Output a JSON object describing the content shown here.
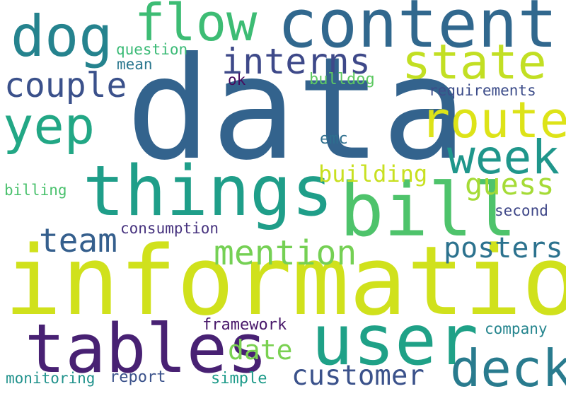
{
  "words": [
    {
      "id": "data",
      "text": "data",
      "color": "#33638d",
      "rotated": false
    },
    {
      "id": "information",
      "text": "information",
      "color": "#d0e11c",
      "rotated": false
    },
    {
      "id": "content",
      "text": "content",
      "color": "#31688e",
      "rotated": false
    },
    {
      "id": "things",
      "text": "things",
      "color": "#1f9e89",
      "rotated": false
    },
    {
      "id": "user",
      "text": "user",
      "color": "#1fa187",
      "rotated": false
    },
    {
      "id": "tables",
      "text": "tables",
      "color": "#482173",
      "rotated": false
    },
    {
      "id": "bill",
      "text": "bill",
      "color": "#4ec36b",
      "rotated": false
    },
    {
      "id": "dog",
      "text": "dog",
      "color": "#25838e",
      "rotated": false
    },
    {
      "id": "flow",
      "text": "flow",
      "color": "#3dbc74",
      "rotated": false
    },
    {
      "id": "deck",
      "text": "deck",
      "color": "#297b8e",
      "rotated": false
    },
    {
      "id": "route",
      "text": "route",
      "color": "#dde318",
      "rotated": false
    },
    {
      "id": "state",
      "text": "state",
      "color": "#c2df23",
      "rotated": false
    },
    {
      "id": "week",
      "text": "week",
      "color": "#1f968b",
      "rotated": false
    },
    {
      "id": "yep",
      "text": "yep",
      "color": "#22a785",
      "rotated": false
    },
    {
      "id": "couple",
      "text": "couple",
      "color": "#3b518b",
      "rotated": false
    },
    {
      "id": "interns",
      "text": "interns",
      "color": "#3e4989",
      "rotated": false
    },
    {
      "id": "mention",
      "text": "mention",
      "color": "#75d054",
      "rotated": false
    },
    {
      "id": "team",
      "text": "team",
      "color": "#355f8d",
      "rotated": false
    },
    {
      "id": "posters",
      "text": "posters",
      "color": "#2c728e",
      "rotated": false
    },
    {
      "id": "customer",
      "text": "customer",
      "color": "#3b528b",
      "rotated": false
    },
    {
      "id": "guess",
      "text": "guess",
      "color": "#a5db36",
      "rotated": false
    },
    {
      "id": "date",
      "text": "date",
      "color": "#7ad151",
      "rotated": false
    },
    {
      "id": "building",
      "text": "building",
      "color": "#c8e020",
      "rotated": false
    },
    {
      "id": "question",
      "text": "question",
      "color": "#3aba76",
      "rotated": false
    },
    {
      "id": "mean",
      "text": "mean",
      "color": "#2a778e",
      "rotated": false
    },
    {
      "id": "ok",
      "text": "ok",
      "color": "#460b5e",
      "rotated": false
    },
    {
      "id": "bulldog",
      "text": "bulldog",
      "color": "#5ec962",
      "rotated": false
    },
    {
      "id": "requirements",
      "text": "requirements",
      "color": "#3d4d8a",
      "rotated": false
    },
    {
      "id": "emc",
      "text": "emc",
      "color": "#2e6f8e",
      "rotated": false
    },
    {
      "id": "billing",
      "text": "billing",
      "color": "#4ac16d",
      "rotated": false
    },
    {
      "id": "consumption",
      "text": "consumption",
      "color": "#46327e",
      "rotated": false
    },
    {
      "id": "second",
      "text": "second",
      "color": "#3f4788",
      "rotated": false
    },
    {
      "id": "framework",
      "text": "framework",
      "color": "#48186a",
      "rotated": false
    },
    {
      "id": "company",
      "text": "company",
      "color": "#25858e",
      "rotated": false
    },
    {
      "id": "monitoring",
      "text": "monitoring",
      "color": "#20928c",
      "rotated": false
    },
    {
      "id": "report",
      "text": "report",
      "color": "#3b528b",
      "rotated": false
    },
    {
      "id": "simple",
      "text": "simple",
      "color": "#1e9b8a",
      "rotated": false
    }
  ]
}
